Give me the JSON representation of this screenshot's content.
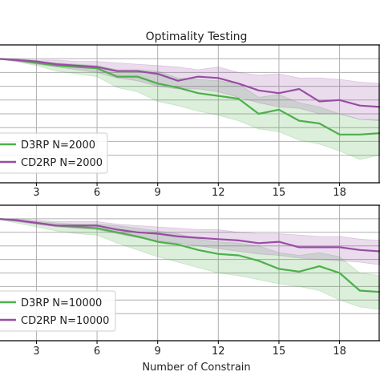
{
  "chart_data": [
    {
      "type": "line",
      "title": "Optimality Testing",
      "xlabel": "",
      "ylabel": "",
      "xlim": [
        1,
        20
      ],
      "ylim": [
        0.0,
        1.0
      ],
      "x_ticks": [
        3,
        6,
        9,
        12,
        15,
        18
      ],
      "y_gridlines": [
        0.9,
        0.8,
        0.7,
        0.6,
        0.5,
        0.4,
        0.3,
        0.2
      ],
      "grid": true,
      "legend_position": "lower-left",
      "x": [
        1,
        2,
        3,
        4,
        5,
        6,
        7,
        8,
        9,
        10,
        11,
        12,
        13,
        14,
        15,
        16,
        17,
        18,
        19,
        20
      ],
      "series": [
        {
          "name": "D3RP N=2000",
          "color": "#4daf4a",
          "values": [
            0.9,
            0.89,
            0.87,
            0.85,
            0.84,
            0.83,
            0.77,
            0.77,
            0.72,
            0.69,
            0.65,
            0.63,
            0.61,
            0.5,
            0.53,
            0.45,
            0.43,
            0.35,
            0.35,
            0.36
          ],
          "lower": [
            0.9,
            0.88,
            0.85,
            0.81,
            0.79,
            0.77,
            0.69,
            0.66,
            0.59,
            0.56,
            0.52,
            0.49,
            0.45,
            0.39,
            0.37,
            0.31,
            0.28,
            0.23,
            0.17,
            0.2
          ],
          "upper": [
            0.9,
            0.89,
            0.88,
            0.87,
            0.86,
            0.85,
            0.82,
            0.82,
            0.81,
            0.76,
            0.75,
            0.74,
            0.72,
            0.62,
            0.64,
            0.58,
            0.55,
            0.5,
            0.46,
            0.46
          ]
        },
        {
          "name": "CD2RP N=2000",
          "color": "#984ea3",
          "values": [
            0.9,
            0.89,
            0.88,
            0.86,
            0.85,
            0.84,
            0.81,
            0.81,
            0.79,
            0.74,
            0.77,
            0.76,
            0.72,
            0.67,
            0.65,
            0.68,
            0.59,
            0.6,
            0.56,
            0.55
          ],
          "lower": [
            0.9,
            0.88,
            0.86,
            0.84,
            0.82,
            0.8,
            0.76,
            0.74,
            0.7,
            0.68,
            0.68,
            0.66,
            0.62,
            0.58,
            0.55,
            0.54,
            0.5,
            0.5,
            0.46,
            0.45
          ],
          "upper": [
            0.9,
            0.9,
            0.89,
            0.89,
            0.88,
            0.88,
            0.87,
            0.86,
            0.85,
            0.84,
            0.82,
            0.84,
            0.8,
            0.78,
            0.79,
            0.76,
            0.76,
            0.75,
            0.73,
            0.72
          ]
        }
      ]
    },
    {
      "type": "line",
      "title": "",
      "xlabel": "Number of Constrain",
      "ylabel": "",
      "xlim": [
        1,
        20
      ],
      "ylim": [
        0.0,
        1.0
      ],
      "x_ticks": [
        3,
        6,
        9,
        12,
        15,
        18
      ],
      "y_gridlines": [
        0.9,
        0.8,
        0.7,
        0.6,
        0.5,
        0.4,
        0.3,
        0.2
      ],
      "grid": true,
      "legend_position": "lower-left",
      "x": [
        1,
        2,
        3,
        4,
        5,
        6,
        7,
        8,
        9,
        10,
        11,
        12,
        13,
        14,
        15,
        16,
        17,
        18,
        19,
        20
      ],
      "series": [
        {
          "name": "D3RP N=10000",
          "color": "#4daf4a",
          "values": [
            0.9,
            0.89,
            0.87,
            0.85,
            0.84,
            0.83,
            0.8,
            0.77,
            0.73,
            0.71,
            0.67,
            0.64,
            0.63,
            0.59,
            0.53,
            0.51,
            0.55,
            0.5,
            0.37,
            0.36
          ],
          "lower": [
            0.9,
            0.87,
            0.84,
            0.81,
            0.79,
            0.78,
            0.72,
            0.67,
            0.62,
            0.58,
            0.54,
            0.5,
            0.48,
            0.45,
            0.42,
            0.4,
            0.37,
            0.3,
            0.25,
            0.23
          ],
          "upper": [
            0.9,
            0.89,
            0.88,
            0.87,
            0.86,
            0.86,
            0.85,
            0.83,
            0.81,
            0.79,
            0.75,
            0.73,
            0.72,
            0.7,
            0.65,
            0.63,
            0.65,
            0.62,
            0.5,
            0.48
          ]
        },
        {
          "name": "CD2RP N=10000",
          "color": "#984ea3",
          "values": [
            0.9,
            0.89,
            0.87,
            0.85,
            0.85,
            0.85,
            0.82,
            0.8,
            0.79,
            0.77,
            0.76,
            0.75,
            0.74,
            0.72,
            0.73,
            0.69,
            0.69,
            0.69,
            0.67,
            0.66
          ],
          "lower": [
            0.9,
            0.88,
            0.86,
            0.84,
            0.83,
            0.82,
            0.79,
            0.76,
            0.74,
            0.72,
            0.7,
            0.68,
            0.66,
            0.64,
            0.63,
            0.61,
            0.6,
            0.59,
            0.58,
            0.56
          ],
          "upper": [
            0.9,
            0.9,
            0.89,
            0.88,
            0.88,
            0.88,
            0.86,
            0.85,
            0.84,
            0.83,
            0.82,
            0.82,
            0.8,
            0.79,
            0.79,
            0.78,
            0.77,
            0.77,
            0.75,
            0.74
          ]
        }
      ]
    }
  ]
}
